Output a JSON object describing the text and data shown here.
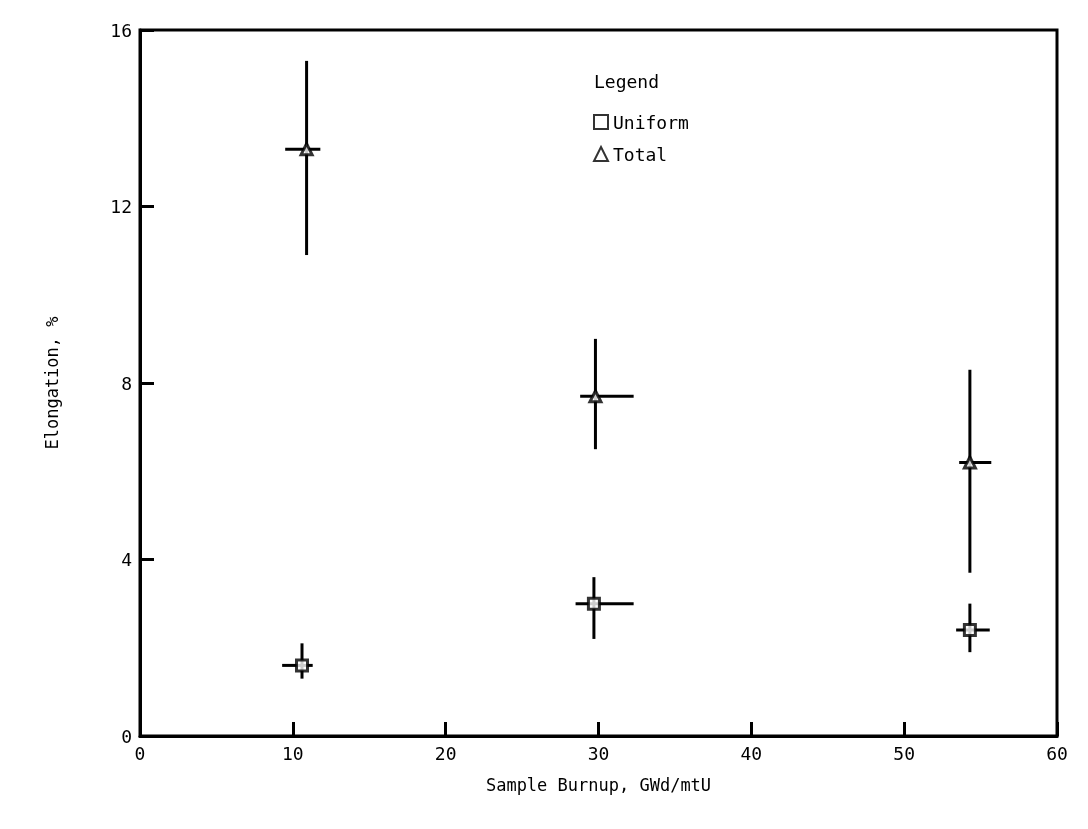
{
  "chart_data": {
    "type": "scatter",
    "xlabel": "Sample Burnup, GWd/mtU",
    "ylabel": "Elongation, %",
    "legend_title": "Legend",
    "legend": "top",
    "xlim": [
      0,
      60
    ],
    "xticks": [
      0,
      10,
      20,
      30,
      40,
      50,
      60
    ],
    "ylim": [
      0,
      16
    ],
    "yticks": [
      0,
      4,
      8,
      12,
      16
    ],
    "grid": false,
    "series": [
      {
        "name": "Uniform",
        "color": "#000000",
        "marker": "square",
        "x": [
          10.6,
          29.7,
          54.3
        ],
        "values": [
          1.6,
          3.0,
          2.4
        ],
        "errors": [
          [
            1.3,
            2.1
          ],
          [
            2.2,
            3.6
          ],
          [
            1.9,
            3.0
          ]
        ],
        "xerrors": [
          [
            9.3,
            11.3
          ],
          [
            28.5,
            32.3
          ],
          [
            53.4,
            55.6
          ]
        ]
      },
      {
        "name": "Total",
        "color": "#000000",
        "marker": "triangle",
        "x": [
          10.9,
          29.8,
          54.3
        ],
        "values": [
          13.3,
          7.7,
          6.2
        ],
        "errors": [
          [
            10.9,
            15.3
          ],
          [
            6.5,
            9.0
          ],
          [
            3.7,
            8.3
          ]
        ],
        "xerrors": [
          [
            9.5,
            11.8
          ],
          [
            28.8,
            32.3
          ],
          [
            53.6,
            55.7
          ]
        ]
      }
    ]
  }
}
